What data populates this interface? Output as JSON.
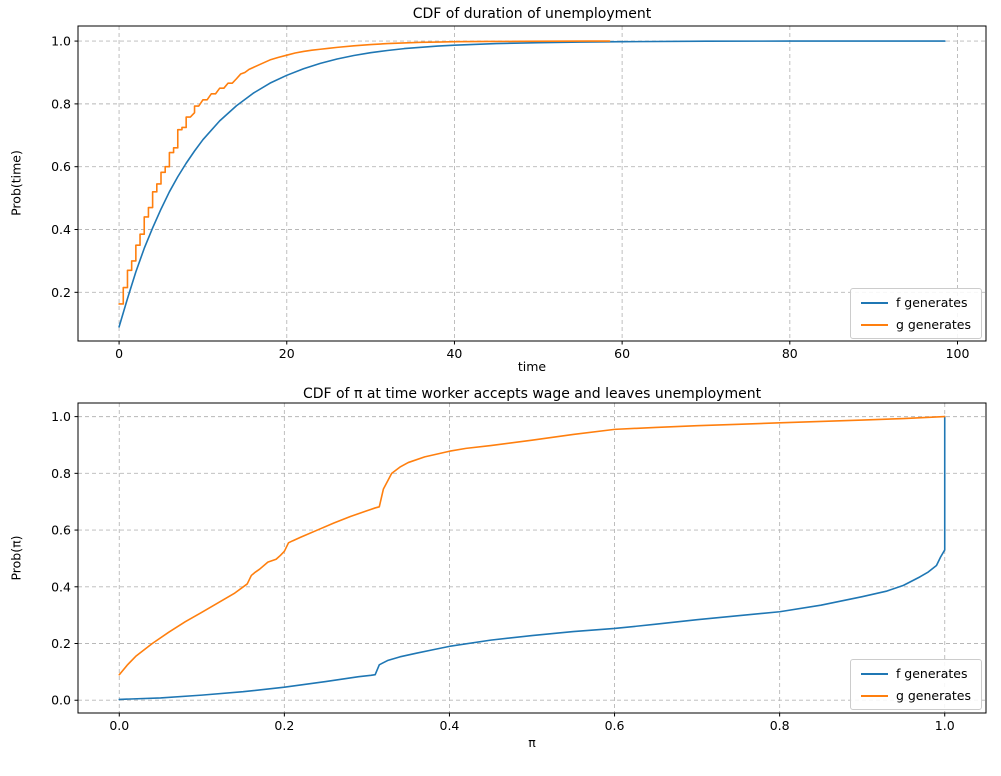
{
  "figure": {
    "background": "#ffffff"
  },
  "colors": {
    "f_line": "#1f77b4",
    "g_line": "#ff7f0e",
    "grid": "#b8b8b8",
    "spine": "#000000",
    "text": "#000000"
  },
  "chart_data": [
    {
      "type": "line",
      "title": "CDF of duration of unemployment",
      "xlabel": "time",
      "ylabel": "Prob(time)",
      "xlim": [
        -4.9,
        103.4
      ],
      "ylim": [
        0.045,
        1.048
      ],
      "grid": true,
      "legend_position": "lower right",
      "xticks": {
        "values": [
          0,
          20,
          40,
          60,
          80,
          100
        ],
        "labels": [
          "0",
          "20",
          "40",
          "60",
          "80",
          "100"
        ]
      },
      "yticks": {
        "values": [
          0.2,
          0.4,
          0.6,
          0.8,
          1.0
        ],
        "labels": [
          "0.2",
          "0.4",
          "0.6",
          "0.8",
          "1.0"
        ]
      },
      "series": [
        {
          "name": "f generates",
          "color": "#1f77b4",
          "x": [
            0,
            1,
            2,
            3,
            4,
            5,
            6,
            7,
            8,
            9,
            10,
            12,
            14,
            16,
            18,
            20,
            22,
            24,
            26,
            28,
            30,
            32,
            34,
            36,
            38,
            40,
            45,
            50,
            55,
            60,
            70,
            80,
            90,
            98.5
          ],
          "y": [
            0.09,
            0.18,
            0.265,
            0.34,
            0.405,
            0.465,
            0.52,
            0.568,
            0.611,
            0.65,
            0.686,
            0.746,
            0.794,
            0.834,
            0.866,
            0.891,
            0.912,
            0.929,
            0.943,
            0.954,
            0.963,
            0.97,
            0.976,
            0.98,
            0.984,
            0.987,
            0.992,
            0.995,
            0.997,
            0.998,
            0.9995,
            1.0,
            1.0,
            1.0
          ]
        },
        {
          "name": "g generates",
          "color": "#ff7f0e",
          "x": [
            0,
            0.5,
            0.5,
            1,
            1,
            1.5,
            1.5,
            2,
            2,
            2.5,
            2.5,
            3,
            3,
            3.5,
            3.5,
            4,
            4,
            4.5,
            4.5,
            5,
            5,
            5.5,
            5.5,
            6,
            6,
            6.5,
            6.5,
            7,
            7,
            7.5,
            7.5,
            8,
            8,
            8.5,
            9,
            9,
            9.5,
            10,
            10.5,
            11,
            11.5,
            12,
            12.5,
            13,
            13.5,
            14,
            14.5,
            15,
            15.5,
            16,
            17,
            18,
            19,
            20,
            21,
            22,
            23,
            24,
            25,
            26,
            28,
            30,
            32,
            34,
            36,
            38,
            40,
            44,
            48,
            52,
            56,
            58.5
          ],
          "y": [
            0.163,
            0.163,
            0.215,
            0.215,
            0.27,
            0.27,
            0.3,
            0.3,
            0.35,
            0.35,
            0.385,
            0.385,
            0.44,
            0.44,
            0.47,
            0.47,
            0.52,
            0.52,
            0.545,
            0.545,
            0.582,
            0.582,
            0.6,
            0.6,
            0.645,
            0.645,
            0.66,
            0.66,
            0.718,
            0.718,
            0.725,
            0.725,
            0.758,
            0.758,
            0.772,
            0.793,
            0.793,
            0.813,
            0.813,
            0.832,
            0.832,
            0.85,
            0.85,
            0.866,
            0.866,
            0.88,
            0.895,
            0.9,
            0.91,
            0.916,
            0.928,
            0.94,
            0.948,
            0.955,
            0.962,
            0.967,
            0.971,
            0.974,
            0.977,
            0.98,
            0.985,
            0.989,
            0.992,
            0.994,
            0.996,
            0.997,
            0.998,
            0.9987,
            0.9992,
            0.9996,
            0.9999,
            1.0
          ]
        }
      ]
    },
    {
      "type": "line",
      "title": "CDF of π at time worker accepts wage and leaves unemployment",
      "xlabel": "π",
      "ylabel": "Prob(π)",
      "xlim": [
        -0.05,
        1.05
      ],
      "ylim": [
        -0.045,
        1.048
      ],
      "grid": true,
      "legend_position": "lower right",
      "xticks": {
        "values": [
          0.0,
          0.2,
          0.4,
          0.6,
          0.8,
          1.0
        ],
        "labels": [
          "0.0",
          "0.2",
          "0.4",
          "0.6",
          "0.8",
          "1.0"
        ]
      },
      "yticks": {
        "values": [
          0.0,
          0.2,
          0.4,
          0.6,
          0.8,
          1.0
        ],
        "labels": [
          "0.0",
          "0.2",
          "0.4",
          "0.6",
          "0.8",
          "1.0"
        ]
      },
      "series": [
        {
          "name": "f generates",
          "color": "#1f77b4",
          "x": [
            0,
            0.05,
            0.1,
            0.15,
            0.2,
            0.25,
            0.29,
            0.305,
            0.31,
            0.315,
            0.325,
            0.34,
            0.36,
            0.38,
            0.4,
            0.45,
            0.5,
            0.55,
            0.6,
            0.65,
            0.7,
            0.75,
            0.8,
            0.85,
            0.9,
            0.93,
            0.95,
            0.97,
            0.98,
            0.99,
            0.995,
            1.0,
            1.0
          ],
          "y": [
            0.003,
            0.008,
            0.018,
            0.03,
            0.046,
            0.066,
            0.083,
            0.088,
            0.09,
            0.125,
            0.14,
            0.153,
            0.166,
            0.178,
            0.19,
            0.212,
            0.228,
            0.242,
            0.253,
            0.268,
            0.284,
            0.298,
            0.312,
            0.335,
            0.365,
            0.385,
            0.405,
            0.435,
            0.452,
            0.475,
            0.505,
            0.53,
            1.0
          ]
        },
        {
          "name": "g generates",
          "color": "#ff7f0e",
          "x": [
            0,
            0.01,
            0.02,
            0.04,
            0.06,
            0.08,
            0.1,
            0.12,
            0.14,
            0.155,
            0.16,
            0.165,
            0.17,
            0.18,
            0.19,
            0.195,
            0.2,
            0.205,
            0.21,
            0.22,
            0.24,
            0.26,
            0.28,
            0.3,
            0.31,
            0.315,
            0.32,
            0.33,
            0.34,
            0.35,
            0.37,
            0.4,
            0.42,
            0.45,
            0.5,
            0.55,
            0.6,
            0.65,
            0.7,
            0.75,
            0.8,
            0.85,
            0.9,
            0.95,
            1.0
          ],
          "y": [
            0.09,
            0.125,
            0.155,
            0.2,
            0.24,
            0.277,
            0.31,
            0.344,
            0.378,
            0.41,
            0.44,
            0.452,
            0.462,
            0.487,
            0.497,
            0.51,
            0.525,
            0.555,
            0.562,
            0.575,
            0.6,
            0.625,
            0.648,
            0.668,
            0.678,
            0.682,
            0.745,
            0.8,
            0.822,
            0.838,
            0.858,
            0.878,
            0.888,
            0.898,
            0.917,
            0.937,
            0.955,
            0.962,
            0.968,
            0.973,
            0.978,
            0.983,
            0.988,
            0.993,
            1.0
          ]
        }
      ]
    }
  ]
}
